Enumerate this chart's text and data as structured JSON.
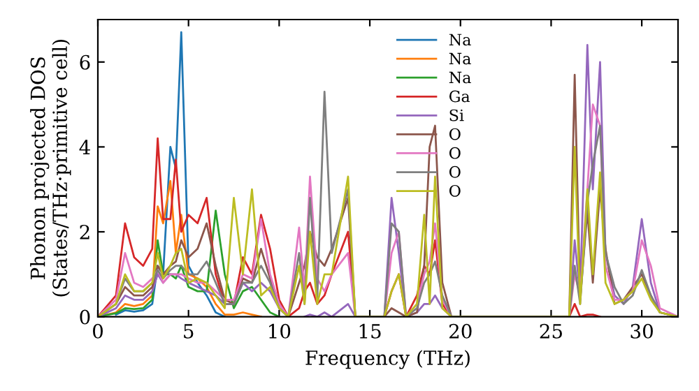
{
  "chart_data": {
    "type": "line",
    "xlabel": "Frequency (THz)",
    "ylabel": "Phonon projected DOS\n(States/THz·primitive cell)",
    "x": [
      0,
      1,
      1.5,
      2,
      2.5,
      3,
      3.3,
      3.6,
      4,
      4.3,
      4.6,
      5,
      5.5,
      6,
      6.5,
      7,
      7.5,
      8,
      8.5,
      9,
      9.5,
      10,
      10.5,
      11.1,
      11.4,
      11.7,
      12.1,
      12.5,
      12.9,
      13.8,
      14.2,
      15.8,
      16.2,
      16.6,
      17,
      17.6,
      18,
      18.3,
      18.6,
      19,
      19.5,
      26,
      26.3,
      26.6,
      27,
      27.3,
      27.7,
      28,
      28.5,
      29,
      29.5,
      30,
      30.5,
      31,
      32
    ],
    "xlim": [
      0,
      32
    ],
    "ylim": [
      0,
      7
    ],
    "xticks": [
      0,
      5,
      10,
      15,
      20,
      25,
      30
    ],
    "yticks": [
      0,
      2,
      4,
      6
    ],
    "grid": false,
    "legend": "top",
    "marker": "none",
    "line_style": "solid",
    "series": [
      {
        "name": "Na",
        "color": "#1f77b4",
        "values": [
          null,
          0.05,
          0.15,
          0.12,
          0.15,
          0.3,
          1.2,
          1.0,
          4.0,
          3.5,
          6.7,
          1.2,
          0.8,
          0.5,
          0.1,
          0,
          null,
          null,
          null,
          null,
          null,
          null,
          null,
          null,
          null,
          null,
          null,
          null,
          null,
          null,
          null,
          null,
          null,
          null,
          null,
          null,
          null,
          null,
          null,
          null,
          null,
          null,
          null,
          null,
          null,
          null,
          null,
          null,
          null,
          null,
          null,
          null,
          null,
          null,
          null
        ]
      },
      {
        "name": "Na",
        "color": "#ff7f0e",
        "values": [
          0,
          0.1,
          0.3,
          0.25,
          0.3,
          0.5,
          2.6,
          2.2,
          3.2,
          1.5,
          2.4,
          1.0,
          0.9,
          0.7,
          0.3,
          0.05,
          0.05,
          0.1,
          0.05,
          0,
          null,
          null,
          null,
          null,
          null,
          null,
          null,
          null,
          null,
          null,
          null,
          null,
          null,
          null,
          null,
          null,
          null,
          null,
          null,
          null,
          null,
          null,
          null,
          null,
          null,
          null,
          null,
          null,
          null,
          null,
          null,
          null,
          null,
          null,
          null
        ]
      },
      {
        "name": "Na",
        "color": "#2ca02c",
        "values": [
          0,
          0.08,
          0.2,
          0.18,
          0.2,
          0.4,
          1.8,
          1.0,
          1.0,
          0.9,
          1.2,
          0.7,
          0.6,
          0.6,
          2.5,
          1.0,
          0.2,
          0.6,
          0.7,
          0.4,
          0.1,
          0,
          null,
          null,
          null,
          null,
          null,
          null,
          null,
          null,
          null,
          null,
          null,
          null,
          null,
          null,
          null,
          null,
          null,
          null,
          null,
          null,
          null,
          null,
          null,
          null,
          null,
          null,
          null,
          null,
          null,
          null,
          null,
          null,
          null
        ]
      },
      {
        "name": "Ga",
        "color": "#d62728",
        "values": [
          0,
          0.5,
          2.2,
          1.4,
          1.2,
          1.6,
          4.2,
          2.3,
          2.3,
          3.7,
          2.0,
          2.4,
          2.2,
          2.8,
          1.0,
          0.3,
          0.3,
          1.4,
          1.0,
          2.4,
          1.6,
          0.4,
          0,
          0.2,
          0.6,
          0.8,
          0.3,
          0.5,
          1.0,
          2.0,
          0,
          0,
          0.6,
          1.0,
          0,
          0.5,
          1.2,
          1.0,
          1.8,
          0.3,
          0,
          0,
          0.3,
          0,
          0.05,
          0.05,
          0,
          null,
          null,
          null,
          null,
          null,
          null,
          null,
          null
        ]
      },
      {
        "name": "Si",
        "color": "#9467bd",
        "values": [
          0,
          0.2,
          0.5,
          0.4,
          0.4,
          0.6,
          1.0,
          0.8,
          1.0,
          1.0,
          0.9,
          0.8,
          0.7,
          0.6,
          0.5,
          0.3,
          0.3,
          0.8,
          0.6,
          0.8,
          0.6,
          0.2,
          0,
          null,
          0,
          0.05,
          0,
          0.1,
          0,
          0.3,
          0,
          0,
          2.8,
          1.5,
          0,
          0.1,
          0.3,
          0.3,
          0.5,
          0.2,
          0,
          0,
          1.8,
          0.5,
          6.4,
          3.0,
          6.0,
          1.5,
          0.5,
          0.3,
          0.7,
          2.3,
          0.8,
          0.1,
          0
        ]
      },
      {
        "name": "O",
        "color": "#8c564b",
        "values": [
          0,
          0.3,
          0.7,
          0.5,
          0.5,
          0.7,
          1.2,
          1.0,
          1.2,
          1.3,
          1.8,
          1.4,
          1.6,
          2.2,
          1.2,
          0.4,
          0.3,
          0.9,
          0.8,
          1.6,
          0.9,
          0.2,
          0,
          0.8,
          1.2,
          2.0,
          1.4,
          1.2,
          1.6,
          2.8,
          0,
          0,
          0.2,
          0.1,
          0,
          0.1,
          1.2,
          4.0,
          4.5,
          0.8,
          0,
          0,
          5.7,
          0.4,
          2.5,
          0.8,
          3.0,
          1.6,
          0.3,
          0.4,
          0.7,
          1.0,
          0.5,
          0.1,
          0
        ]
      },
      {
        "name": "O",
        "color": "#e377c2",
        "values": [
          0,
          0.4,
          1.5,
          0.8,
          0.7,
          0.9,
          1.1,
          0.8,
          1.0,
          1.0,
          1.0,
          0.9,
          0.8,
          0.8,
          0.6,
          0.4,
          0.4,
          1.0,
          0.9,
          2.3,
          1.0,
          0.3,
          0,
          2.1,
          0.6,
          3.3,
          0.9,
          0.6,
          1.0,
          1.5,
          0,
          0,
          1.5,
          2.0,
          0,
          0.3,
          1.0,
          1.3,
          2.2,
          0.4,
          0,
          0,
          1.0,
          0.5,
          3.0,
          5.0,
          4.5,
          1.2,
          0.4,
          0.4,
          0.6,
          1.8,
          1.2,
          0.2,
          0
        ]
      },
      {
        "name": "O",
        "color": "#7f7f7f",
        "values": [
          0,
          0.3,
          0.9,
          0.6,
          0.6,
          0.8,
          1.1,
          0.9,
          1.1,
          1.2,
          1.2,
          1.0,
          1.0,
          1.3,
          0.8,
          0.3,
          0.3,
          0.8,
          0.8,
          1.2,
          0.8,
          0.2,
          0,
          1.5,
          0.3,
          2.8,
          0.4,
          5.3,
          1.5,
          3.0,
          0,
          0,
          2.2,
          2.0,
          0,
          0.2,
          0.8,
          1.0,
          1.3,
          0.5,
          0,
          0,
          1.2,
          0.3,
          2.7,
          3.6,
          4.5,
          1.5,
          0.7,
          0.3,
          0.5,
          1.1,
          0.5,
          0.1,
          0
        ]
      },
      {
        "name": "O",
        "color": "#bcbd22",
        "values": [
          0,
          0.3,
          1.0,
          0.6,
          0.6,
          0.8,
          1.5,
          0.9,
          1.2,
          1.5,
          1.6,
          0.8,
          0.9,
          0.8,
          0.5,
          0.2,
          2.8,
          1.0,
          3.0,
          0.5,
          0.7,
          0.2,
          0,
          1.2,
          0.3,
          2.0,
          0.3,
          1.0,
          1.0,
          3.3,
          0,
          0,
          0.6,
          1.0,
          0,
          0.3,
          2.4,
          0.3,
          3.3,
          0.2,
          0,
          0,
          4.0,
          0.3,
          3.0,
          1.0,
          3.4,
          0.8,
          0.3,
          0.4,
          0.6,
          0.9,
          0.4,
          0.1,
          0
        ]
      }
    ]
  }
}
